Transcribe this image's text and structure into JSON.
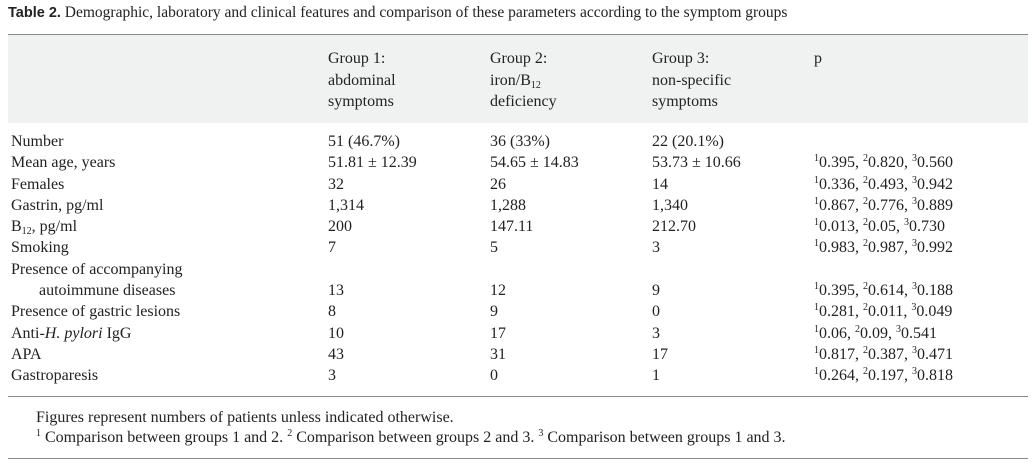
{
  "caption": {
    "label": "Table 2.",
    "text": " Demographic, laboratory and clinical features and comparison of these parameters according to the symptom groups"
  },
  "headers": [
    [
      "Group 1:",
      "abdominal",
      "symptoms"
    ],
    [
      "Group 2:",
      "iron/B",
      "deficiency"
    ],
    [
      "Group 3:",
      "non-specific",
      "symptoms"
    ],
    [
      "p"
    ]
  ],
  "header_sub": "12",
  "rows": [
    {
      "name": "number",
      "label": "Number",
      "g1": "51 (46.7%)",
      "g2": "36 (33%)",
      "g3": "22 (20.1%)",
      "p": []
    },
    {
      "name": "mean-age",
      "label": "Mean age, years",
      "g1": "51.81 ± 12.39",
      "g2": "54.65 ± 14.83",
      "g3": "53.73 ± 10.66",
      "p": [
        "0.395, ",
        "0.820, ",
        "0.560"
      ]
    },
    {
      "name": "females",
      "label": "Females",
      "g1": "32",
      "g2": "26",
      "g3": "14",
      "p": [
        "0.336, ",
        "0.493, ",
        "0.942"
      ]
    },
    {
      "name": "gastrin",
      "label": "Gastrin, pg/ml",
      "g1": "1,314",
      "g2": "1,288",
      "g3": "1,340",
      "p": [
        "0.867, ",
        "0.776, ",
        "0.889"
      ]
    },
    {
      "name": "b12",
      "label": "B",
      "label_sub": "12",
      "label_rest": ", pg/ml",
      "g1": "200",
      "g2": "147.11",
      "g3": "212.70",
      "p": [
        "0.013, ",
        "0.05, ",
        "0.730"
      ]
    },
    {
      "name": "smoking",
      "label": "Smoking",
      "g1": "7",
      "g2": "5",
      "g3": "3",
      "p": [
        "0.983, ",
        "0.987, ",
        "0.992"
      ]
    },
    {
      "name": "autoimmune",
      "label": "Presence of accompanying",
      "label_line2": "autoimmune diseases",
      "g1": "13",
      "g2": "12",
      "g3": "9",
      "p": [
        "0.395, ",
        "0.614, ",
        "0.188"
      ]
    },
    {
      "name": "gastric-lesions",
      "label": "Presence of gastric lesions",
      "g1": "8",
      "g2": "9",
      "g3": "0",
      "p": [
        "0.281, ",
        "0.011, ",
        "0.049"
      ]
    },
    {
      "name": "anti-hpylori",
      "label": "Anti-",
      "label_ital": "H. pylori",
      "label_rest": " IgG",
      "g1": "10",
      "g2": "17",
      "g3": "3",
      "p": [
        "0.06, ",
        "0.09, ",
        "0.541"
      ]
    },
    {
      "name": "apa",
      "label": "APA",
      "g1": "43",
      "g2": "31",
      "g3": "17",
      "p": [
        "0.817, ",
        "0.387, ",
        "0.471"
      ]
    },
    {
      "name": "gastroparesis",
      "label": "Gastroparesis",
      "g1": "3",
      "g2": "0",
      "g3": "1",
      "p": [
        "0.264, ",
        "0.197, ",
        "0.818"
      ]
    }
  ],
  "p_markers": [
    "1",
    "2",
    "3"
  ],
  "footnotes": {
    "line1": "Figures represent numbers of patients unless indicated otherwise.",
    "line2": [
      {
        "sup": "1",
        "text": " Comparison between groups 1 and 2. "
      },
      {
        "sup": "2",
        "text": " Comparison between groups 2 and 3. "
      },
      {
        "sup": "3",
        "text": " Comparison between groups 1 and 3."
      }
    ]
  }
}
